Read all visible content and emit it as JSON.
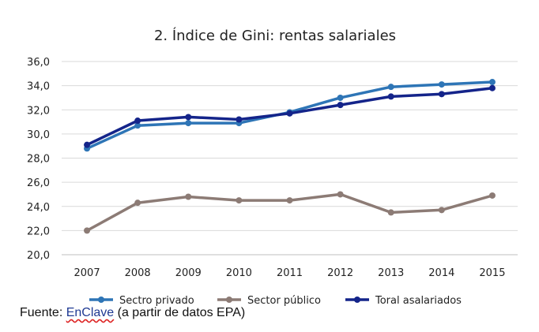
{
  "chart_data": {
    "type": "line",
    "title": "2. Índice de Gini:  rentas salariales",
    "x": [
      "2007",
      "2008",
      "2009",
      "2010",
      "2011",
      "2012",
      "2013",
      "2014",
      "2015"
    ],
    "ylim": [
      20,
      36
    ],
    "yticks": [
      "20,0",
      "22,0",
      "24,0",
      "26,0",
      "28,0",
      "30,0",
      "32,0",
      "34,0",
      "36,0"
    ],
    "grid": true,
    "legend_position": "bottom",
    "series": [
      {
        "name": "Sectro privado",
        "color": "#2e75b6",
        "values": [
          28.8,
          30.7,
          30.9,
          30.9,
          31.8,
          33.0,
          33.9,
          34.1,
          34.3
        ]
      },
      {
        "name": "Sector público",
        "color": "#8c7b75",
        "values": [
          22.0,
          24.3,
          24.8,
          24.5,
          24.5,
          25.0,
          23.5,
          23.7,
          24.9
        ]
      },
      {
        "name": "Toral asalariados",
        "color": "#14248a",
        "values": [
          29.1,
          31.1,
          31.4,
          31.2,
          31.7,
          32.4,
          33.1,
          33.3,
          33.8
        ]
      }
    ]
  },
  "source": {
    "prefix": "Fuente: ",
    "link": "EnClave",
    "suffix": " (a partir de datos EPA)"
  }
}
